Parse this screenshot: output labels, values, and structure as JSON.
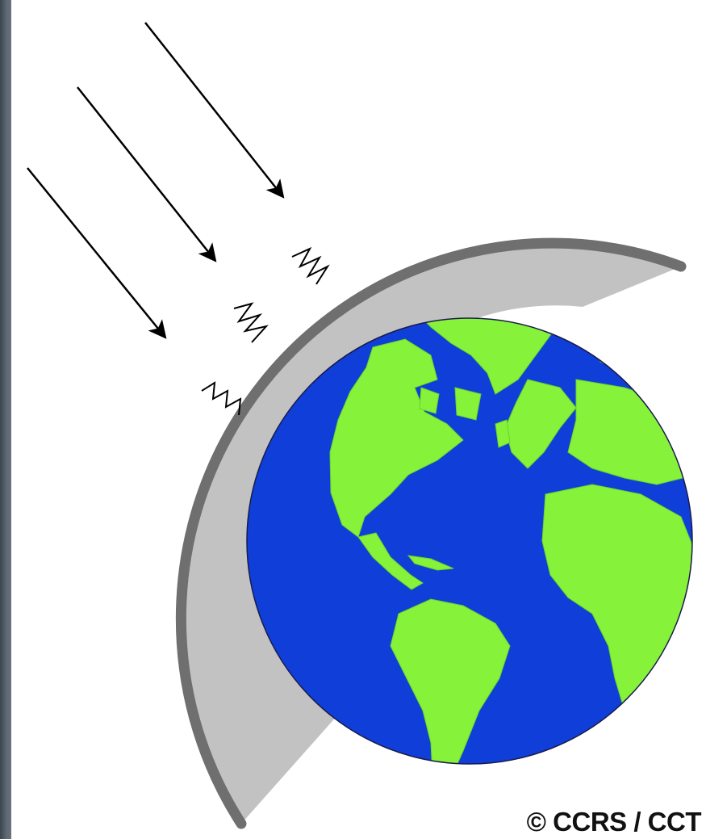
{
  "credit": "© CCRS / CCT",
  "colors": {
    "ocean": "#0f3fd8",
    "land": "#86f23a",
    "atmosphere_fill": "#c2c2c2",
    "atmosphere_edge": "#6f6f6f",
    "frame": "#56616b"
  },
  "icons": [
    "incoming-radiation-arrow",
    "scattering-wave-icon",
    "earth-globe"
  ]
}
